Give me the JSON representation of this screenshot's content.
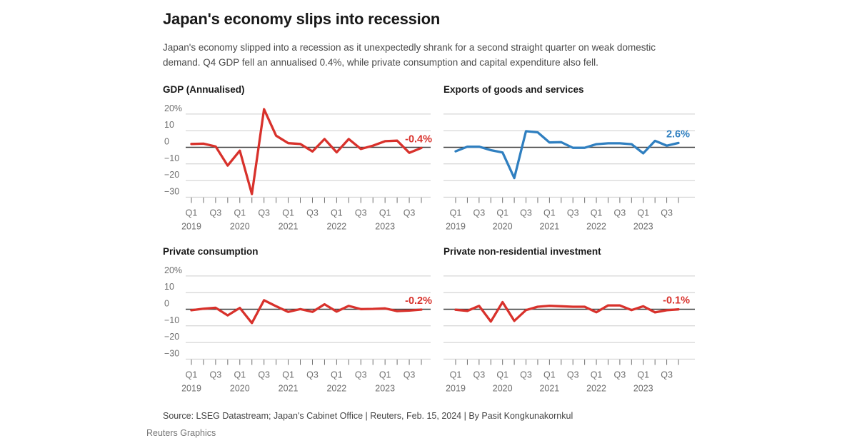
{
  "page": {
    "title": "Japan's economy slips into recession",
    "subtitle": "Japan's economy slipped into a recession as it unexpectedly shrank for a second straight quarter on weak domestic demand. Q4 GDP fell an annualised 0.4%, while private consumption and capital expenditure also fell.",
    "source": "Source: LSEG Datastream; Japan's Cabinet Office | Reuters, Feb. 15, 2024 | By Pasit Kongkunakornkul",
    "credit": "Reuters Graphics"
  },
  "colors": {
    "red": "#d8312b",
    "blue": "#2f7fc0",
    "grid": "#cccccc",
    "zero_line": "#3f3f3f",
    "axis_text": "#6e6e6e",
    "tick": "#6f6f6f"
  },
  "axis": {
    "y_tick_labels": [
      "20%",
      "10",
      "0",
      "−10",
      "−20",
      "−30"
    ],
    "y_levels": [
      20,
      10,
      0,
      -10,
      -20,
      -30
    ],
    "x_tick_labels": [
      "Q1",
      "Q3",
      "Q1",
      "Q3",
      "Q1",
      "Q3",
      "Q1",
      "Q3",
      "Q1",
      "Q3"
    ],
    "year_labels": [
      "2019",
      "2020",
      "2021",
      "2022",
      "2023"
    ]
  },
  "chart_data": [
    {
      "type": "line",
      "title": "GDP (Annualised)",
      "series_color": "red",
      "end_label": "-0.4%",
      "show_y_labels": true,
      "ylim": [
        -30,
        20
      ],
      "categories": [
        "2019 Q1",
        "2019 Q2",
        "2019 Q3",
        "2019 Q4",
        "2020 Q1",
        "2020 Q2",
        "2020 Q3",
        "2020 Q4",
        "2021 Q1",
        "2021 Q2",
        "2021 Q3",
        "2021 Q4",
        "2022 Q1",
        "2022 Q2",
        "2022 Q3",
        "2022 Q4",
        "2023 Q1",
        "2023 Q2",
        "2023 Q3",
        "2023 Q4"
      ],
      "values": [
        2.0,
        2.2,
        0.5,
        -11.0,
        -2.0,
        -28.1,
        22.9,
        7.0,
        2.5,
        2.0,
        -2.5,
        5.0,
        -3.0,
        5.0,
        -1.0,
        1.0,
        3.7,
        4.0,
        -3.3,
        -0.4
      ]
    },
    {
      "type": "line",
      "title": "Exports of goods and services",
      "series_color": "blue",
      "end_label": "2.6%",
      "show_y_labels": false,
      "ylim": [
        -30,
        20
      ],
      "categories": [
        "2019 Q1",
        "2019 Q2",
        "2019 Q3",
        "2019 Q4",
        "2020 Q1",
        "2020 Q2",
        "2020 Q3",
        "2020 Q4",
        "2021 Q1",
        "2021 Q2",
        "2021 Q3",
        "2021 Q4",
        "2022 Q1",
        "2022 Q2",
        "2022 Q3",
        "2022 Q4",
        "2023 Q1",
        "2023 Q2",
        "2023 Q3",
        "2023 Q4"
      ],
      "values": [
        -2.4,
        0.4,
        0.4,
        -1.7,
        -3.1,
        -18.5,
        9.7,
        9.0,
        2.9,
        3.1,
        -0.3,
        -0.3,
        1.9,
        2.4,
        2.4,
        1.9,
        -3.6,
        3.9,
        1.0,
        2.6
      ]
    },
    {
      "type": "line",
      "title": "Private consumption",
      "series_color": "red",
      "end_label": "-0.2%",
      "show_y_labels": true,
      "ylim": [
        -30,
        20
      ],
      "categories": [
        "2019 Q1",
        "2019 Q2",
        "2019 Q3",
        "2019 Q4",
        "2020 Q1",
        "2020 Q2",
        "2020 Q3",
        "2020 Q4",
        "2021 Q1",
        "2021 Q2",
        "2021 Q3",
        "2021 Q4",
        "2022 Q1",
        "2022 Q2",
        "2022 Q3",
        "2022 Q4",
        "2023 Q1",
        "2023 Q2",
        "2023 Q3",
        "2023 Q4"
      ],
      "values": [
        -0.6,
        0.3,
        0.9,
        -3.7,
        0.8,
        -8.3,
        5.4,
        1.8,
        -1.6,
        0.1,
        -1.6,
        3.0,
        -1.4,
        2.0,
        0.1,
        0.2,
        0.5,
        -1.1,
        -0.8,
        -0.2
      ]
    },
    {
      "type": "line",
      "title": "Private non-residential investment",
      "series_color": "red",
      "end_label": "-0.1%",
      "show_y_labels": false,
      "ylim": [
        -30,
        20
      ],
      "categories": [
        "2019 Q1",
        "2019 Q2",
        "2019 Q3",
        "2019 Q4",
        "2020 Q1",
        "2020 Q2",
        "2020 Q3",
        "2020 Q4",
        "2021 Q1",
        "2021 Q2",
        "2021 Q3",
        "2021 Q4",
        "2022 Q1",
        "2022 Q2",
        "2022 Q3",
        "2022 Q4",
        "2023 Q1",
        "2023 Q2",
        "2023 Q3",
        "2023 Q4"
      ],
      "values": [
        -0.3,
        -1.0,
        2.0,
        -7.4,
        4.3,
        -7.0,
        -0.5,
        1.5,
        2.1,
        1.8,
        1.5,
        1.5,
        -1.8,
        2.3,
        2.3,
        -0.5,
        1.8,
        -1.9,
        -0.6,
        -0.1
      ]
    }
  ]
}
